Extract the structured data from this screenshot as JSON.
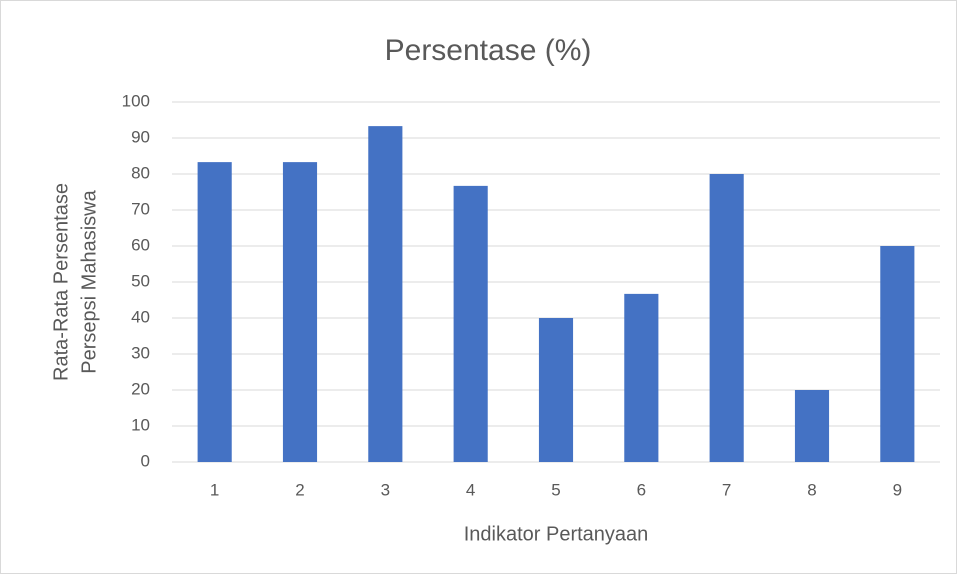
{
  "chart_data": {
    "type": "bar",
    "title": "Persentase (%)",
    "xlabel": "Indikator Pertanyaan",
    "ylabel": [
      "Rata-Rata Persentase",
      "Persepsi Mahasiswa"
    ],
    "categories": [
      "1",
      "2",
      "3",
      "4",
      "5",
      "6",
      "7",
      "8",
      "9"
    ],
    "values": [
      83.3,
      83.3,
      93.3,
      76.7,
      40,
      46.7,
      80,
      20,
      60
    ],
    "color": "#4472c4",
    "ylim": [
      0,
      100
    ],
    "yticks": [
      0,
      10,
      20,
      30,
      40,
      50,
      60,
      70,
      80,
      90,
      100
    ],
    "grid": true
  }
}
